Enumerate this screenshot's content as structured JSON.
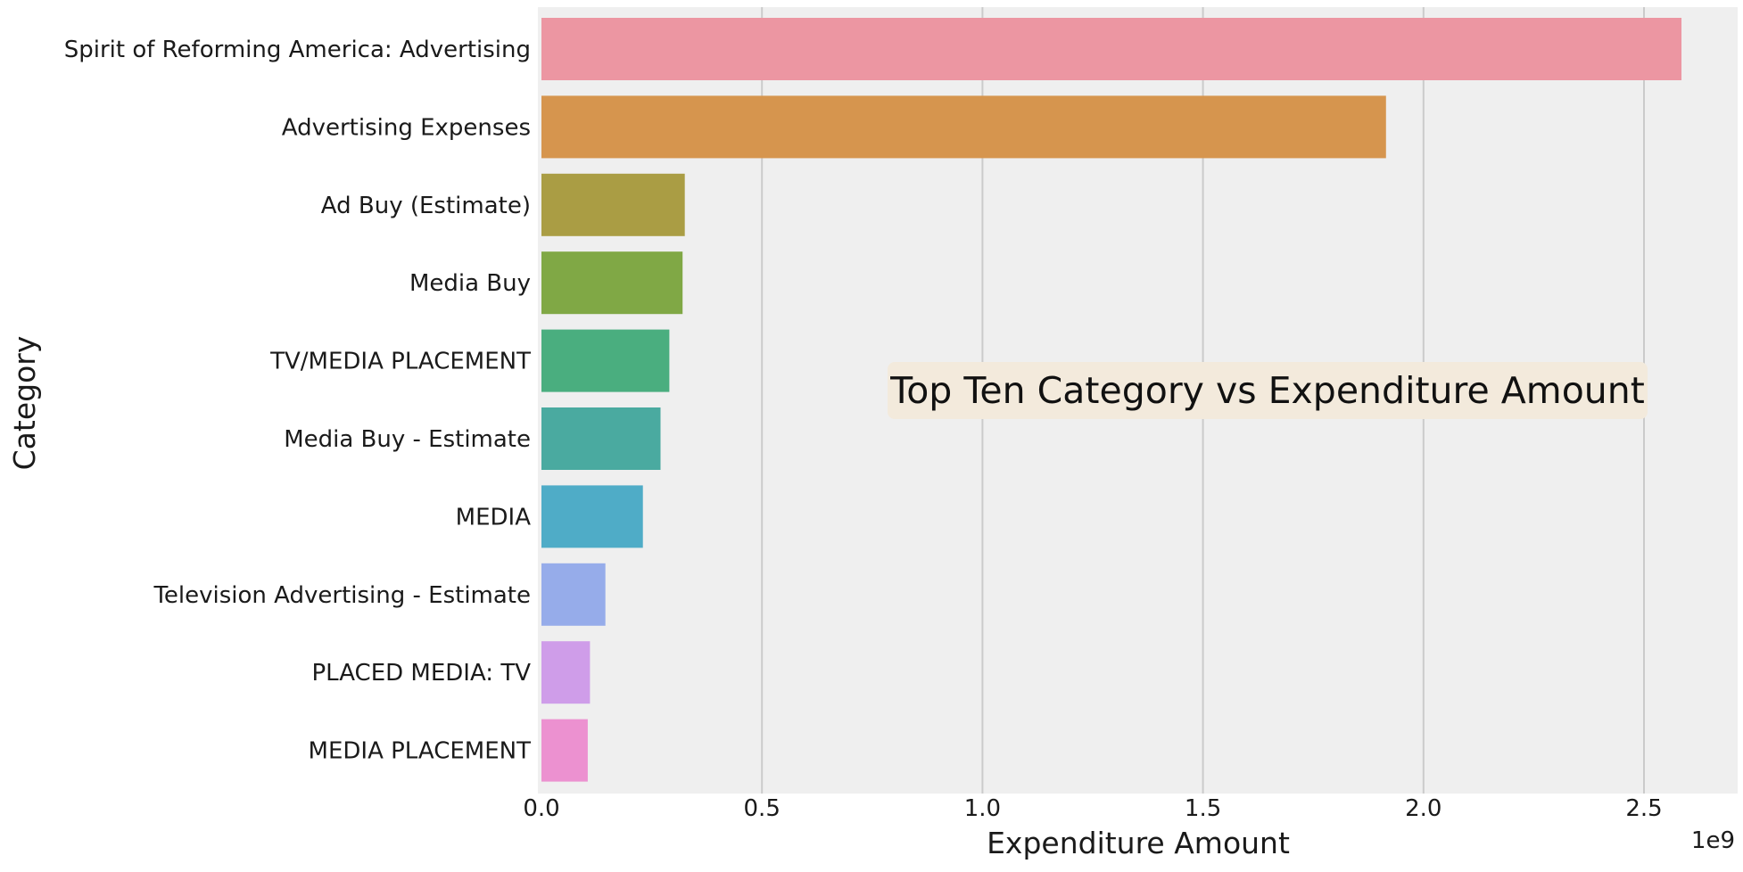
{
  "chart_data": {
    "type": "bar",
    "orientation": "horizontal",
    "categories": [
      "Spirit of Reforming America: Advertising",
      "Advertising Expenses",
      "Ad Buy (Estimate)",
      "Media Buy",
      "TV/MEDIA PLACEMENT",
      "Media Buy - Estimate",
      "MEDIA",
      "Television Advertising - Estimate",
      "PLACED MEDIA: TV",
      "MEDIA PLACEMENT"
    ],
    "values": [
      2.585,
      1.915,
      0.325,
      0.32,
      0.29,
      0.27,
      0.23,
      0.145,
      0.11,
      0.105
    ],
    "value_scale_label": "1e9",
    "xlabel": "Expenditure Amount",
    "ylabel": "Category",
    "xlim": [
      0,
      2.73
    ],
    "xticks": [
      "0.0",
      "0.5",
      "1.0",
      "1.5",
      "2.0",
      "2.5"
    ],
    "xtick_values": [
      0,
      0.5,
      1.0,
      1.5,
      2.0,
      2.5
    ],
    "grid": "vertical",
    "annotation": "Top Ten Category vs Expenditure Amount",
    "colors": [
      "#ec96a2",
      "#d6954e",
      "#aa9d44",
      "#80a845",
      "#4aae7f",
      "#4aaaa0",
      "#4facc7",
      "#96acea",
      "#cf9de9",
      "#ec91d0"
    ],
    "background": "#efefef",
    "gridline_color": "#cbcbcb",
    "annotation_box_color": "#f3eadc"
  }
}
